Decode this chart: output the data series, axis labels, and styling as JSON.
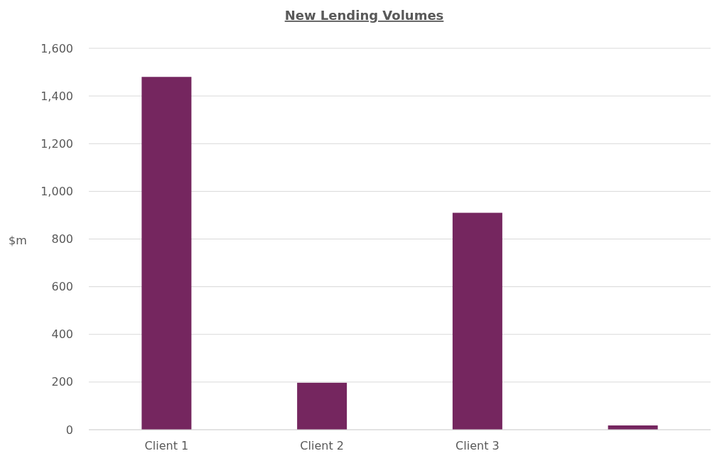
{
  "chart_data": {
    "type": "bar",
    "title": "New Lending Volumes",
    "ylabel": "$m",
    "categories": [
      "Client 1",
      "Client 2",
      "Client 3",
      null
    ],
    "values": [
      1480,
      197,
      910,
      18
    ],
    "color": "#75265f",
    "ylim": [
      0,
      1600
    ],
    "yticks": [
      0,
      {
        "value": 200,
        "label": "200"
      },
      {
        "value": 400,
        "label": "400"
      },
      {
        "value": 600,
        "label": "600"
      },
      {
        "value": 800,
        "label": "800"
      },
      {
        "value": 1000,
        "label": "1,000"
      },
      {
        "value": 1200,
        "label": "1,200"
      },
      {
        "value": 1400,
        "label": "1,400"
      },
      {
        "value": 1600,
        "label": "1,600"
      }
    ],
    "grid": true
  }
}
